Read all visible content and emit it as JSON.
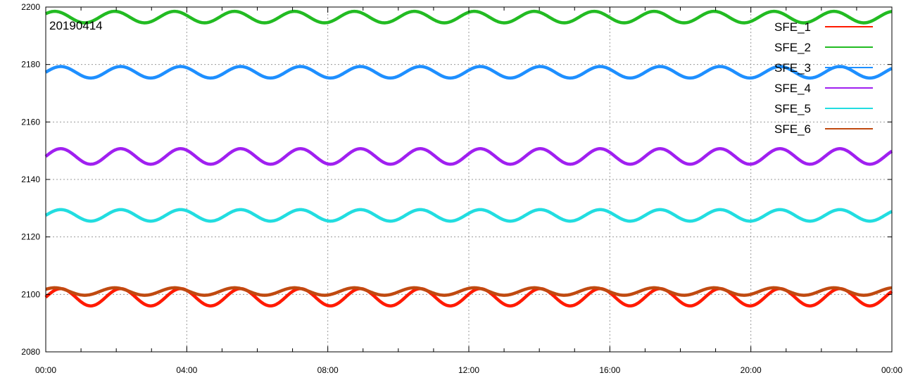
{
  "chart_data": {
    "type": "line",
    "title": "",
    "annotation": "20190414",
    "xlabel": "",
    "ylabel": "",
    "x_ticks": [
      "00:00",
      "04:00",
      "08:00",
      "12:00",
      "16:00",
      "20:00",
      "00:00"
    ],
    "x_range_hours": [
      0,
      24
    ],
    "y_ticks": [
      "2080",
      "2100",
      "2120",
      "2140",
      "2160",
      "2180",
      "2200"
    ],
    "ylim": [
      2080,
      2200
    ],
    "grid": true,
    "legend_position": "top-right",
    "oscillation_period_hours": 1.7,
    "series": [
      {
        "name": "SFE_1",
        "color": "#ff1a00",
        "center": 2099,
        "amplitude": 3.0,
        "phase": 0.0
      },
      {
        "name": "SFE_2",
        "color": "#22bb22",
        "center": 2196.5,
        "amplitude": 2.0,
        "phase": 0.1
      },
      {
        "name": "SFE_3",
        "color": "#1e8fff",
        "center": 2177.3,
        "amplitude": 2.0,
        "phase": 0.0
      },
      {
        "name": "SFE_4",
        "color": "#a020f0",
        "center": 2148,
        "amplitude": 2.7,
        "phase": 0.0
      },
      {
        "name": "SFE_5",
        "color": "#22dde0",
        "center": 2127.5,
        "amplitude": 2.0,
        "phase": 0.0
      },
      {
        "name": "SFE_6",
        "color": "#c04a10",
        "center": 2101,
        "amplitude": 1.3,
        "phase": 0.1
      }
    ]
  }
}
